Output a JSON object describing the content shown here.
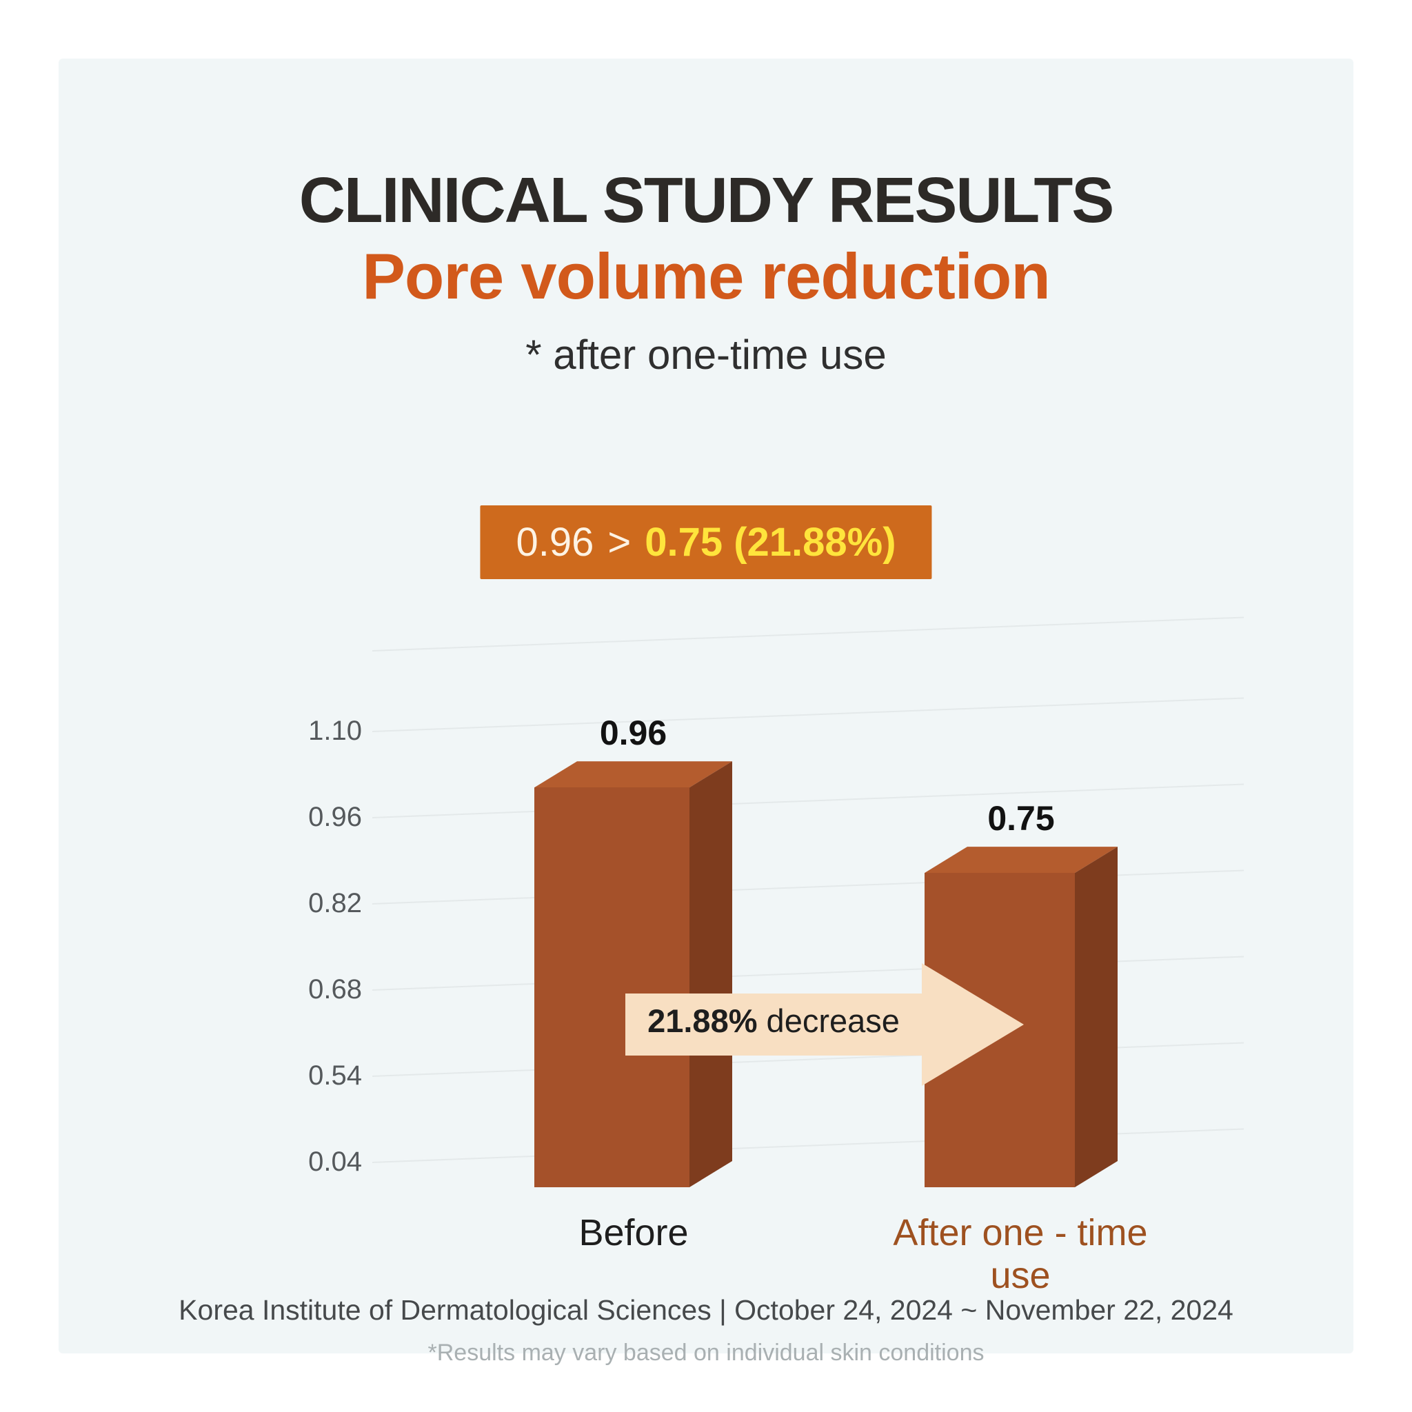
{
  "header": {
    "title": "CLINICAL STUDY RESULTS",
    "subtitle": "Pore volume reduction",
    "note": "* after one-time use"
  },
  "highlight": {
    "before": "0.96",
    "arrow": ">",
    "after": "0.75 (21.88%)"
  },
  "chart_data": {
    "type": "bar",
    "style": "3d-column",
    "categories": [
      "Before",
      "After one - time use"
    ],
    "values": [
      0.96,
      0.75
    ],
    "value_labels": [
      "0.96",
      "0.75"
    ],
    "y_ticks": [
      "1.10",
      "0.96",
      "0.82",
      "0.68",
      "0.54",
      "0.04"
    ],
    "ylim": [
      0.04,
      1.1
    ],
    "grid": true,
    "legend": false,
    "annotation_bold": "21.88%",
    "annotation_rest": " decrease"
  },
  "footer": {
    "source": "Korea Institute of Dermatological Sciences | October 24, 2024 ~ November 22, 2024",
    "disclaimer": "*Results may vary based on individual skin conditions"
  },
  "theme": {
    "card_bg": "#f1f6f7",
    "title_color": "#2d2a27",
    "accent_orange": "#d2591b",
    "pill_bg": "#ce6a1d",
    "pill_text": "#fdf3e4",
    "pill_yellow": "#ffe43c",
    "bar_front": "#a5512a",
    "bar_side": "#7e3c1e",
    "bar_top": "#b45c2e",
    "arrow_fill": "#f8dfc2",
    "after_label": "#9e5120",
    "tick_color": "#55595c",
    "grid_color": "#e4e9ea"
  }
}
